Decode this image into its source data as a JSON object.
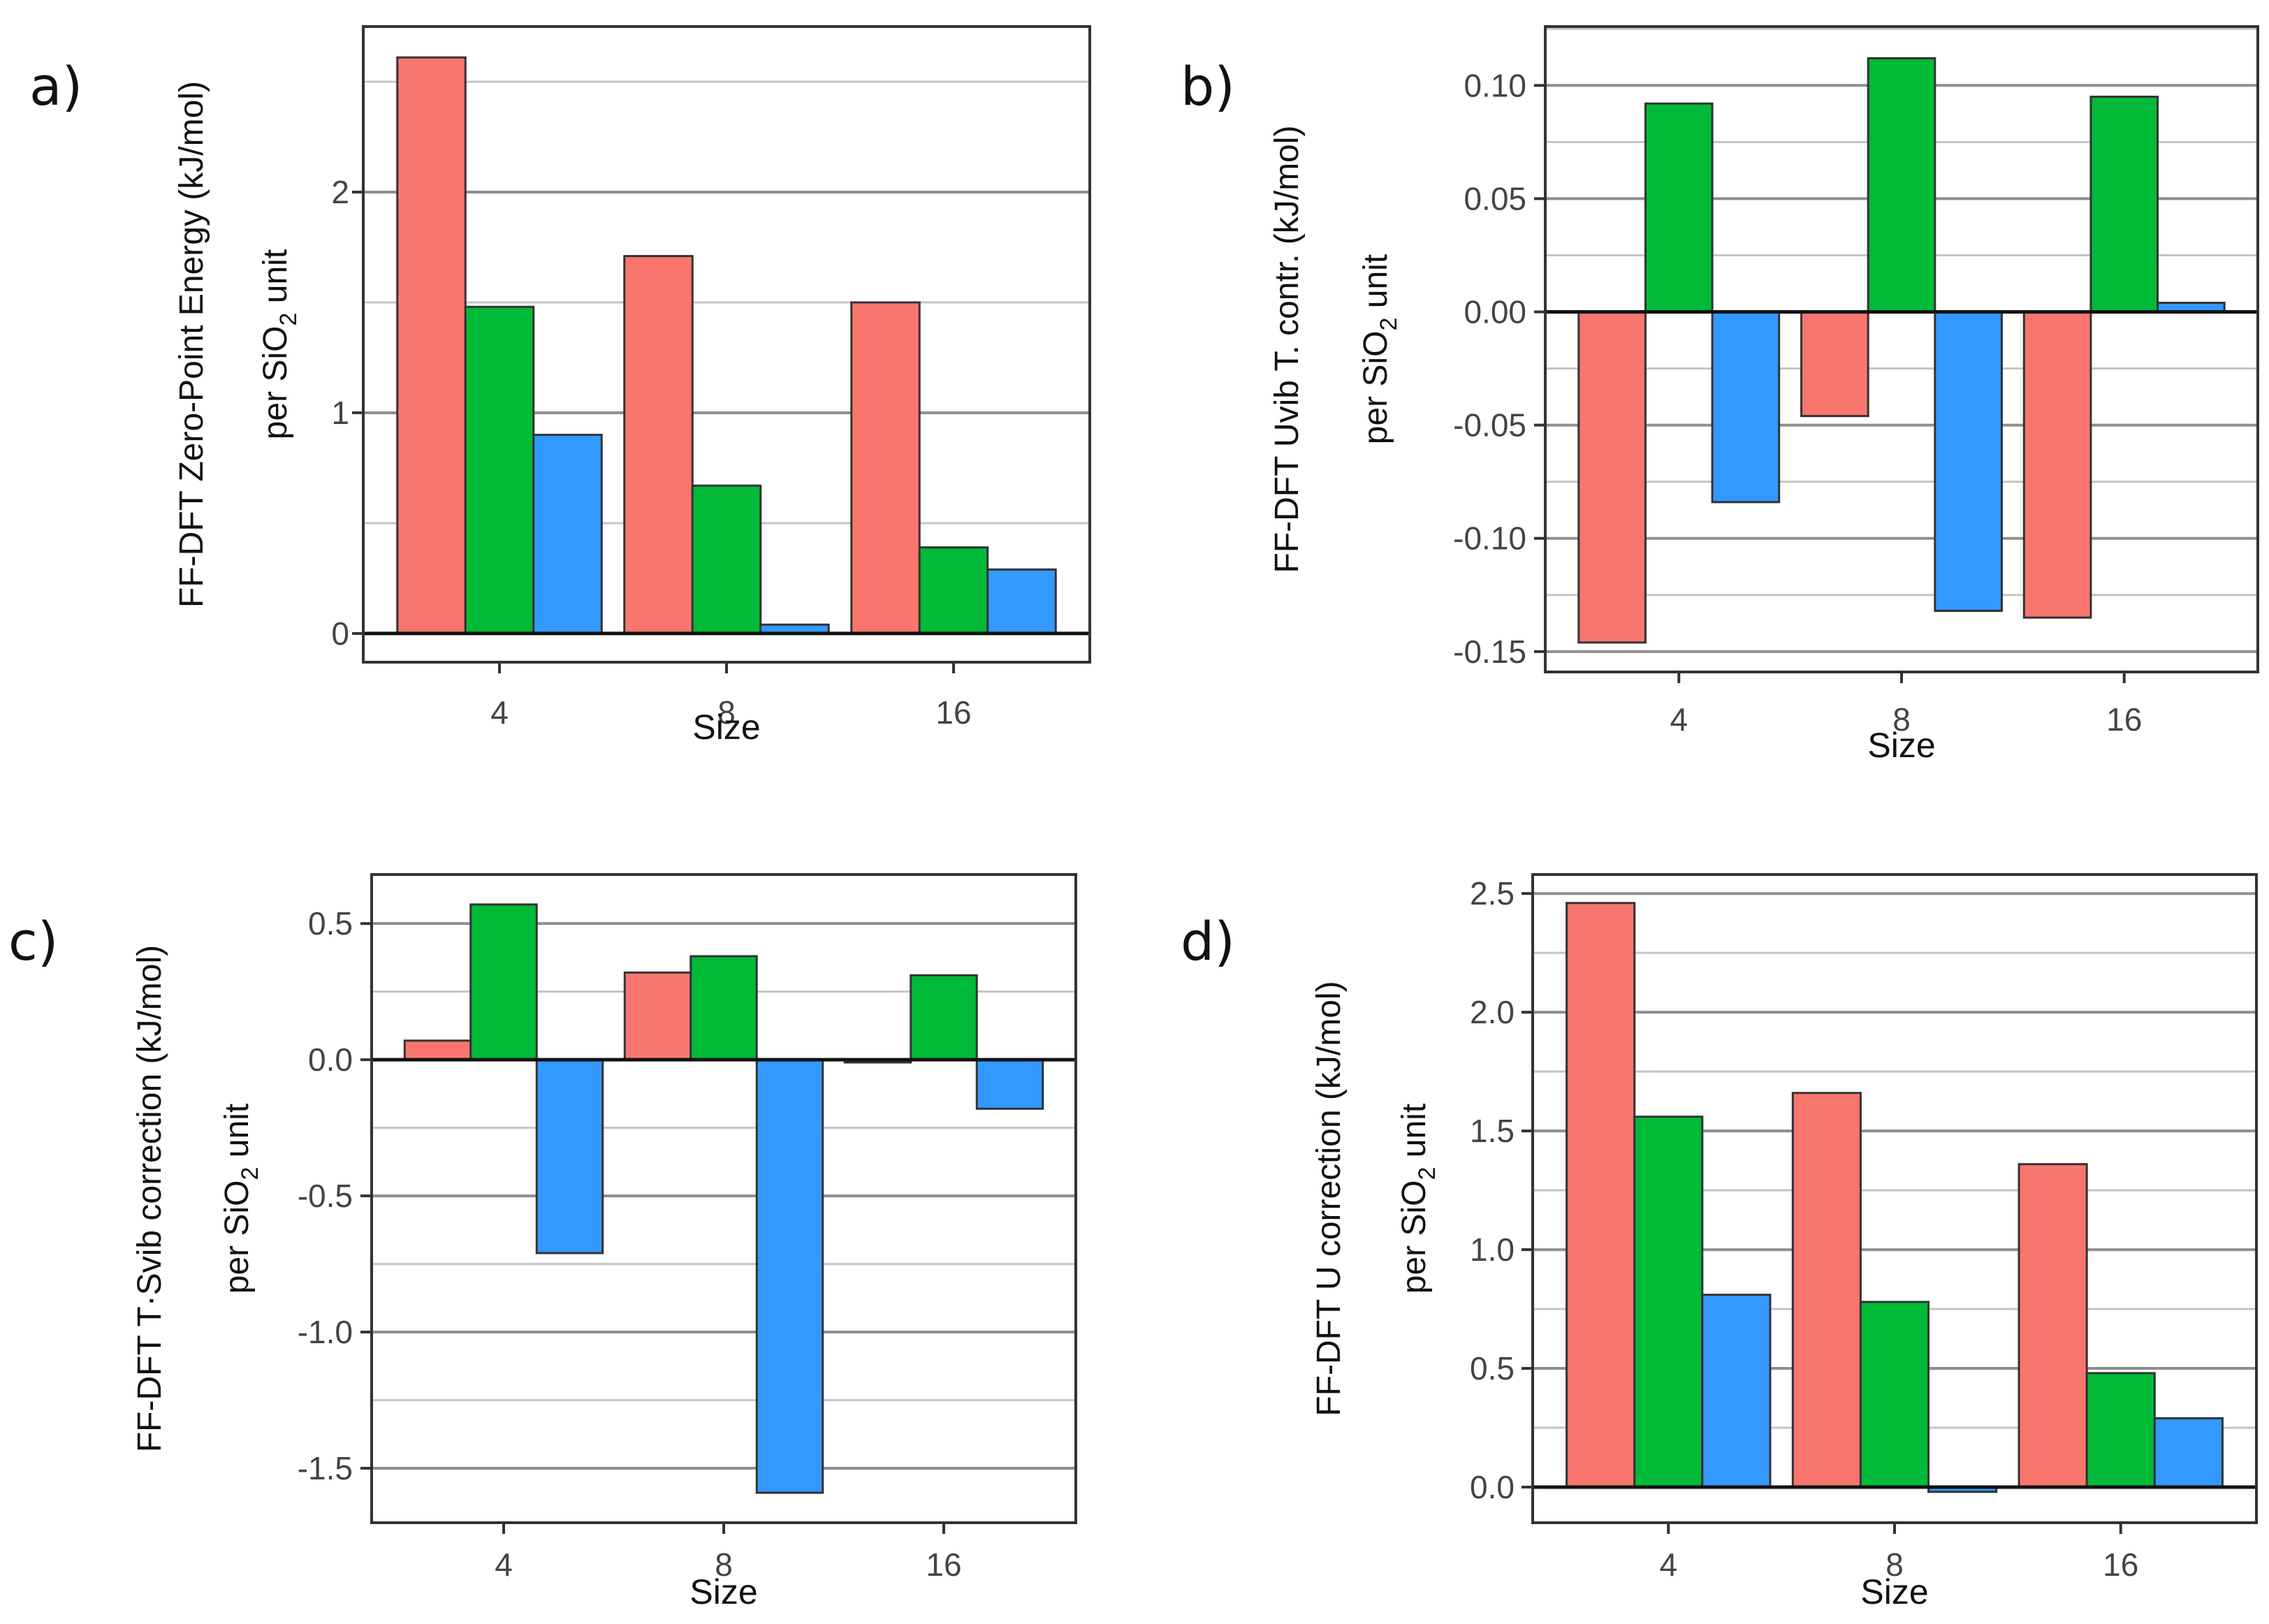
{
  "colors": {
    "red": "#f8766d",
    "green": "#00ba38",
    "blue": "#3399ff"
  },
  "chart_data": [
    {
      "panel": "a)",
      "type": "bar",
      "categories": [
        "4",
        "8",
        "16"
      ],
      "series": [
        {
          "color": "red",
          "values": [
            2.61,
            1.71,
            1.5
          ]
        },
        {
          "color": "green",
          "values": [
            1.48,
            0.67,
            0.39
          ]
        },
        {
          "color": "blue",
          "values": [
            0.9,
            0.04,
            0.29
          ]
        }
      ],
      "xlabel": "Size",
      "ylabel_line1": "FF-DFT Zero-Point Energy (kJ/mol)",
      "ylabel_line2_pre": "per  SiO",
      "ylabel_line2_sub": "2",
      "ylabel_line2_post": " unit",
      "ylim": [
        -0.13,
        2.75
      ],
      "yticks": [
        0,
        1,
        2
      ],
      "yticklabels": [
        "0",
        "1",
        "2"
      ],
      "minor_grid": [
        0.5,
        1.5,
        2.5
      ],
      "grid": true
    },
    {
      "panel": "b)",
      "type": "bar",
      "categories": [
        "4",
        "8",
        "16"
      ],
      "series": [
        {
          "color": "red",
          "values": [
            -0.146,
            -0.046,
            -0.135
          ]
        },
        {
          "color": "green",
          "values": [
            0.092,
            0.112,
            0.095
          ]
        },
        {
          "color": "blue",
          "values": [
            -0.084,
            -0.132,
            0.004
          ]
        }
      ],
      "xlabel": "Size",
      "ylabel_line1": "FF-DFT Uvib T. contr. (kJ/mol)",
      "ylabel_line2_pre": "per  SiO",
      "ylabel_line2_sub": "2",
      "ylabel_line2_post": " unit",
      "ylim": [
        -0.159,
        0.126
      ],
      "yticks": [
        0.1,
        0.05,
        0.0,
        -0.05,
        -0.1,
        -0.15
      ],
      "yticklabels": [
        "0.10",
        "0.05",
        "0.00",
        "-0.05",
        "-0.10",
        "-0.15"
      ],
      "minor_grid": [
        0.125,
        0.075,
        0.025,
        -0.025,
        -0.075,
        -0.125
      ],
      "grid": true
    },
    {
      "panel": "c)",
      "type": "bar",
      "categories": [
        "4",
        "8",
        "16"
      ],
      "series": [
        {
          "color": "red",
          "values": [
            0.07,
            0.32,
            -0.01
          ]
        },
        {
          "color": "green",
          "values": [
            0.57,
            0.38,
            0.31
          ]
        },
        {
          "color": "blue",
          "values": [
            -0.71,
            -1.59,
            -0.18
          ]
        }
      ],
      "xlabel": "Size",
      "ylabel_line1": "FF-DFT T·Svib correction (kJ/mol)",
      "ylabel_line2_pre": "per  SiO",
      "ylabel_line2_sub": "2",
      "ylabel_line2_post": " unit",
      "ylim": [
        -1.7,
        0.68
      ],
      "yticks": [
        0.5,
        0.0,
        -0.5,
        -1.0,
        -1.5
      ],
      "yticklabels": [
        "0.5",
        "0.0",
        "-0.5",
        "-1.0",
        "-1.5"
      ],
      "minor_grid": [
        0.25,
        -0.25,
        -0.75,
        -1.25
      ],
      "grid": true
    },
    {
      "panel": "d)",
      "type": "bar",
      "categories": [
        "4",
        "8",
        "16"
      ],
      "series": [
        {
          "color": "red",
          "values": [
            2.46,
            1.66,
            1.36
          ]
        },
        {
          "color": "green",
          "values": [
            1.56,
            0.78,
            0.48
          ]
        },
        {
          "color": "blue",
          "values": [
            0.81,
            -0.02,
            0.29
          ]
        }
      ],
      "xlabel": "Size",
      "ylabel_line1": "FF-DFT U correction (kJ/mol)",
      "ylabel_line2_pre": "per  SiO",
      "ylabel_line2_sub": "2",
      "ylabel_line2_post": " unit",
      "ylim": [
        -0.15,
        2.58
      ],
      "yticks": [
        0.0,
        0.5,
        1.0,
        1.5,
        2.0,
        2.5
      ],
      "yticklabels": [
        "0.0",
        "0.5",
        "1.0",
        "1.5",
        "2.0",
        "2.5"
      ],
      "minor_grid": [
        0.25,
        0.75,
        1.25,
        1.75,
        2.25
      ],
      "grid": true
    }
  ]
}
